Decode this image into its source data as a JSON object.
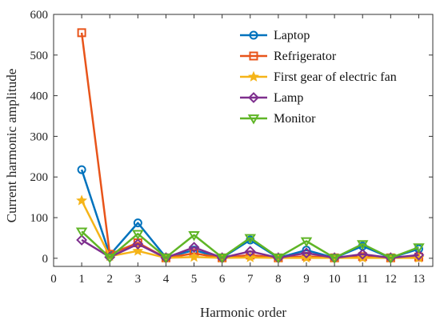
{
  "chart_data": {
    "type": "line",
    "xlabel": "Harmonic order",
    "ylabel": "Current harmonic amplitude",
    "xlim": [
      0,
      13.5
    ],
    "ylim": [
      -20,
      600
    ],
    "x_ticks": [
      0,
      1,
      2,
      3,
      4,
      5,
      6,
      7,
      8,
      9,
      10,
      11,
      12,
      13
    ],
    "y_ticks": [
      0,
      100,
      200,
      300,
      400,
      500,
      600
    ],
    "grid": false,
    "legend_position": "top-right",
    "x": [
      1,
      2,
      3,
      4,
      5,
      6,
      7,
      8,
      9,
      10,
      11,
      12,
      13
    ],
    "series": [
      {
        "name": "Laptop",
        "color": "#0072bd",
        "marker": "circle",
        "values": [
          218,
          8,
          87,
          2,
          20,
          1,
          45,
          1,
          20,
          1,
          30,
          1,
          23
        ]
      },
      {
        "name": "Refrigerator",
        "color": "#e8541a",
        "marker": "square",
        "values": [
          555,
          10,
          38,
          1,
          12,
          1,
          8,
          1,
          5,
          1,
          4,
          1,
          3
        ]
      },
      {
        "name": "First gear of electric fan",
        "color": "#f5b418",
        "marker": "star",
        "values": [
          142,
          5,
          18,
          1,
          3,
          1,
          2,
          1,
          1,
          1,
          1,
          1,
          1
        ]
      },
      {
        "name": "Lamp",
        "color": "#7e2f8e",
        "marker": "diamond",
        "values": [
          45,
          3,
          35,
          1,
          27,
          1,
          17,
          1,
          13,
          1,
          10,
          1,
          8
        ]
      },
      {
        "name": "Monitor",
        "color": "#5fb526",
        "marker": "triangle-down",
        "values": [
          66,
          2,
          60,
          2,
          57,
          2,
          50,
          2,
          42,
          1,
          35,
          1,
          27
        ]
      }
    ]
  }
}
